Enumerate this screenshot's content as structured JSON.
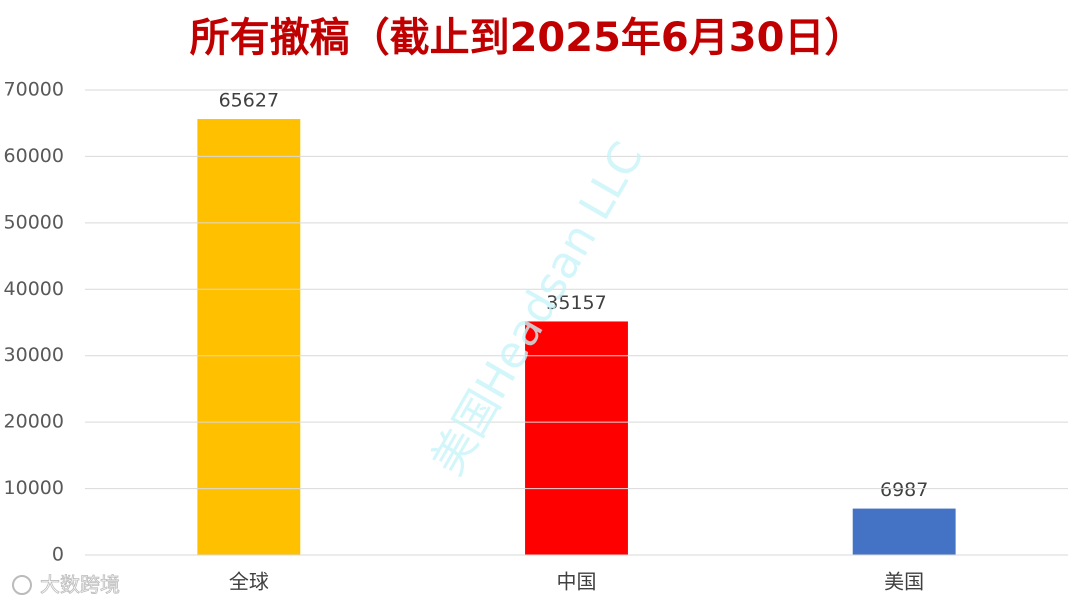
{
  "chart_data": {
    "type": "bar",
    "title": "所有撤稿（截止到2025年6月30日）",
    "categories": [
      "全球",
      "中国",
      "美国"
    ],
    "values": [
      65627,
      35157,
      6987
    ],
    "colors": [
      "#ffc000",
      "#ff0000",
      "#4472c4"
    ],
    "ylim": [
      0,
      70000
    ],
    "yticks": [
      0,
      10000,
      20000,
      30000,
      40000,
      50000,
      60000,
      70000
    ],
    "grid": true,
    "watermark": "美国Headsan LLC",
    "logo_text": "大数跨境"
  }
}
